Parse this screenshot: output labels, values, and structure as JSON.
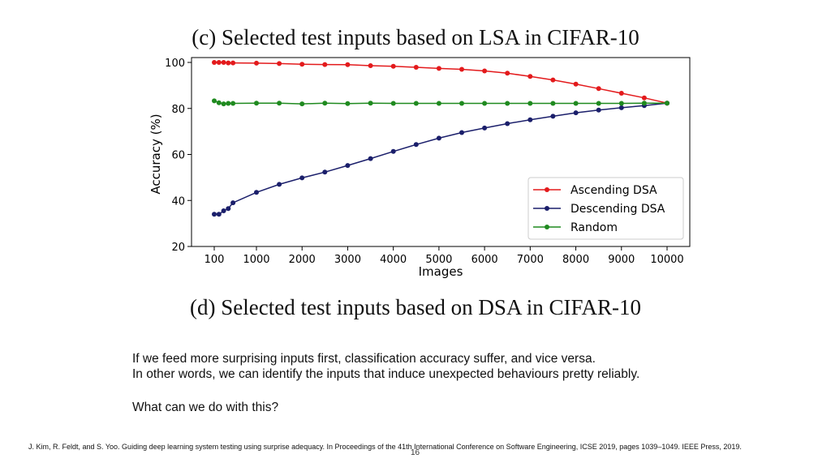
{
  "slide": {
    "caption_top": "(c) Selected test inputs based on LSA in CIFAR-10",
    "caption_bottom": "(d) Selected test inputs based on DSA in CIFAR-10",
    "body_line1": "If we feed more surprising inputs first, classification accuracy suffer, and vice versa.",
    "body_line2": "In other words, we can identify the inputs that induce unexpected behaviours pretty reliably.",
    "question": "What can we do with this?",
    "reference": "J. Kim, R. Feldt, and S. Yoo. Guiding deep learning system testing using surprise adequacy. In Proceedings of the 41th International Conference on Software Engineering, ICSE 2019, pages 1039–1049. IEEE Press, 2019.",
    "page_number": "16"
  },
  "chart_data": {
    "type": "line",
    "title": "",
    "xlabel": "Images",
    "ylabel": "Accuracy (%)",
    "ylim": [
      20,
      100
    ],
    "yticks": [
      "20",
      "40",
      "60",
      "80",
      "100"
    ],
    "xtick_labels": [
      "100",
      "1000",
      "2000",
      "3000",
      "4000",
      "5000",
      "6000",
      "7000",
      "8000",
      "9000",
      "10000"
    ],
    "grid": false,
    "legend_position": "lower-right",
    "x": [
      100,
      200,
      300,
      400,
      500,
      1000,
      1500,
      2000,
      2500,
      3000,
      3500,
      4000,
      4500,
      5000,
      5500,
      6000,
      6500,
      7000,
      7500,
      8000,
      8500,
      9000,
      9500,
      10000
    ],
    "series": [
      {
        "name": "Ascending DSA",
        "color": "#e31a1c",
        "values": [
          100,
          100,
          100,
          99.8,
          99.8,
          99.7,
          99.5,
          99.2,
          99.1,
          99,
          98.6,
          98.3,
          97.9,
          97.4,
          97,
          96.3,
          95.3,
          93.9,
          92.4,
          90.6,
          88.6,
          86.6,
          84.6,
          82.3
        ]
      },
      {
        "name": "Descending DSA",
        "color": "#1b1f6b",
        "values": [
          34,
          34,
          35.5,
          36.5,
          39,
          43.5,
          47,
          49.8,
          52.3,
          55.2,
          58.2,
          61.3,
          64.3,
          67.1,
          69.5,
          71.5,
          73.4,
          75.1,
          76.6,
          78.1,
          79.3,
          80.3,
          81.2,
          82.3
        ]
      },
      {
        "name": "Random",
        "color": "#1f8a1f",
        "values": [
          83.3,
          82.5,
          82,
          82.2,
          82.2,
          82.3,
          82.3,
          82,
          82.3,
          82.1,
          82.3,
          82.2,
          82.2,
          82.2,
          82.2,
          82.2,
          82.2,
          82.2,
          82.2,
          82.2,
          82.2,
          82.2,
          82.3,
          82.3
        ]
      }
    ]
  }
}
